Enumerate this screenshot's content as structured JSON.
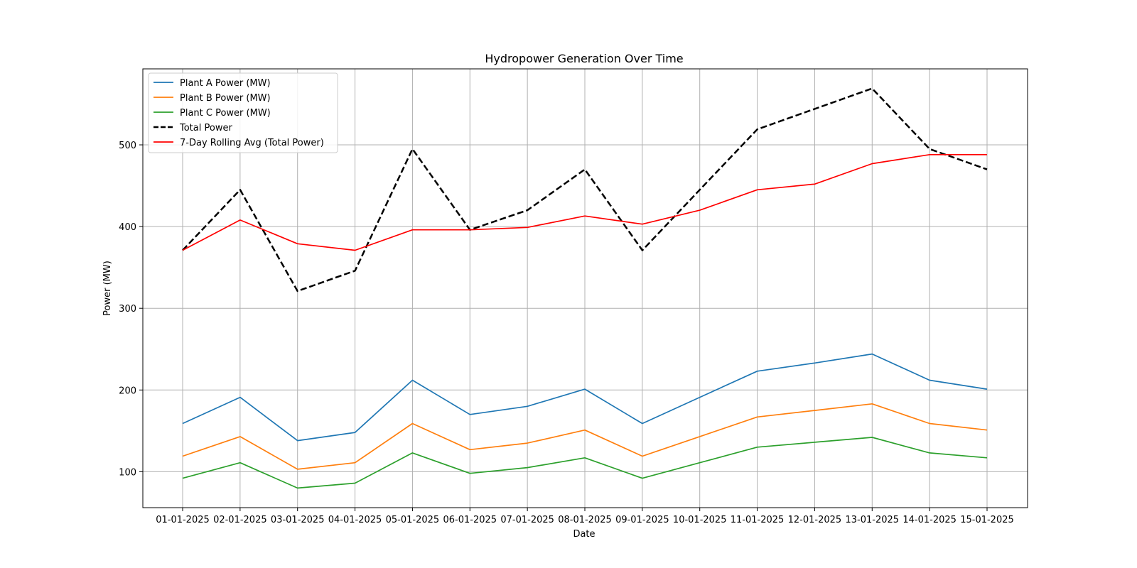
{
  "chart_data": {
    "type": "line",
    "title": "Hydropower Generation Over Time",
    "xlabel": "Date",
    "ylabel": "Power (MW)",
    "categories": [
      "01-01-2025",
      "02-01-2025",
      "03-01-2025",
      "04-01-2025",
      "05-01-2025",
      "06-01-2025",
      "07-01-2025",
      "08-01-2025",
      "09-01-2025",
      "10-01-2025",
      "11-01-2025",
      "12-01-2025",
      "13-01-2025",
      "14-01-2025",
      "15-01-2025"
    ],
    "ylim": [
      56,
      593
    ],
    "yticks": [
      100,
      200,
      300,
      400,
      500
    ],
    "grid": true,
    "legend_position": "top-left",
    "series": [
      {
        "name": "Plant A Power (MW)",
        "color": "#1f77b4",
        "style": "solid",
        "values": [
          159,
          191,
          138,
          148,
          212,
          170,
          180,
          201,
          159,
          191,
          223,
          233,
          244,
          212,
          201
        ]
      },
      {
        "name": "Plant B Power (MW)",
        "color": "#ff7f0e",
        "style": "solid",
        "values": [
          119,
          143,
          103,
          111,
          159,
          127,
          135,
          151,
          119,
          143,
          167,
          175,
          183,
          159,
          151
        ]
      },
      {
        "name": "Plant C Power (MW)",
        "color": "#2ca02c",
        "style": "solid",
        "values": [
          92,
          111,
          80,
          86,
          123,
          98,
          105,
          117,
          92,
          111,
          130,
          136,
          142,
          123,
          117
        ]
      },
      {
        "name": "Total Power",
        "color": "#000000",
        "style": "dashed",
        "values": [
          371,
          445,
          321,
          346,
          495,
          396,
          420,
          470,
          371,
          445,
          519,
          544,
          569,
          495,
          470
        ]
      },
      {
        "name": "7-Day Rolling Avg (Total Power)",
        "color": "#ff0000",
        "style": "solid",
        "values": [
          371,
          408,
          379,
          371,
          396,
          396,
          399,
          413,
          403,
          420,
          445,
          452,
          477,
          488,
          488
        ]
      }
    ]
  }
}
